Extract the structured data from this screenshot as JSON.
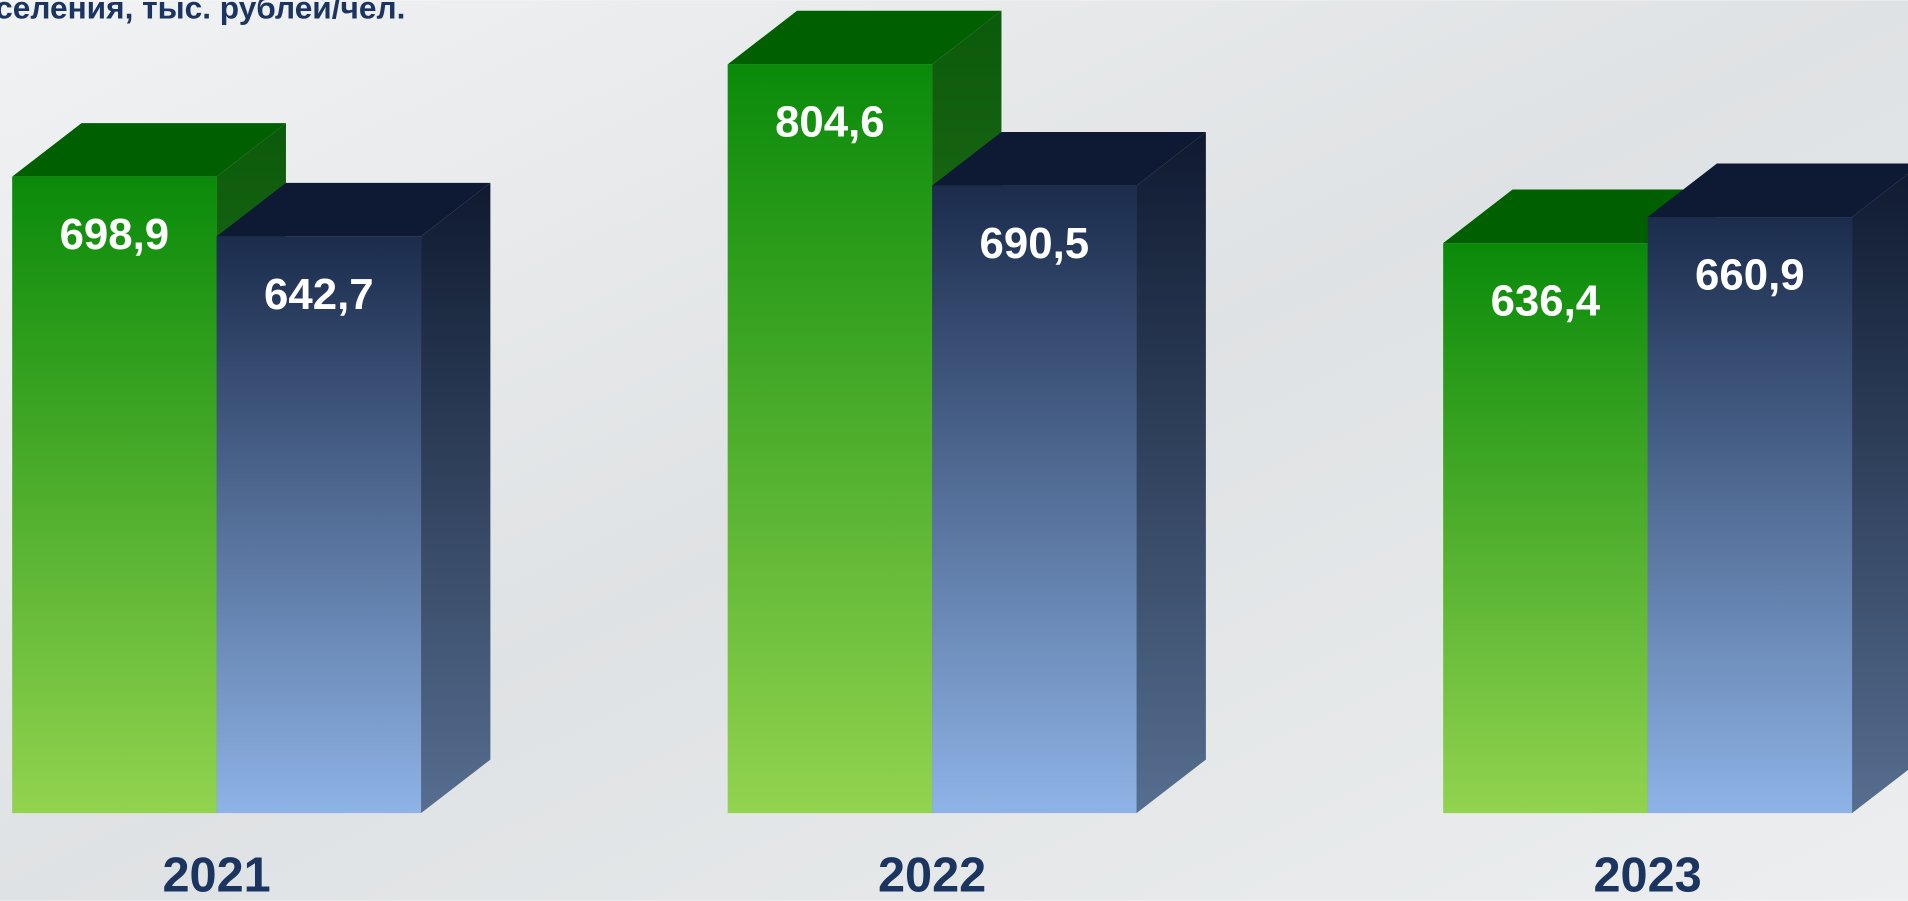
{
  "chart_data": {
    "type": "bar3d",
    "title": "селения, тыс. рублей/чел.",
    "categories": [
      "2021",
      "2022",
      "2023"
    ],
    "series": [
      {
        "color": "#0a8a0a",
        "values": [
          698.9,
          804.6,
          636.4
        ],
        "value_labels": [
          "698,9",
          "804,6",
          "636,4"
        ]
      },
      {
        "color": "#1b2c4c",
        "values": [
          642.7,
          690.5,
          660.9
        ],
        "value_labels": [
          "642,7",
          "690,5",
          "660,9"
        ]
      }
    ],
    "ylim": [
      100,
      850
    ]
  }
}
